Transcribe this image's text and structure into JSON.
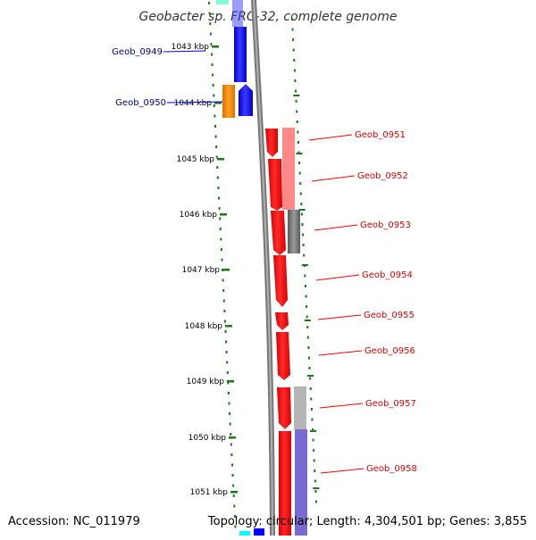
{
  "title": "Geobacter sp. FRC-32, complete genome",
  "footer": {
    "accession": "Accession: NC_011979",
    "topology": "Topology: circular; Length: 4,304,501 bp; Genes: 3,855"
  },
  "ticks": [
    "1043 kbp",
    "1044 kbp",
    "1045 kbp",
    "1046 kbp",
    "1047 kbp",
    "1048 kbp",
    "1049 kbp",
    "1050 kbp",
    "1051 kbp"
  ],
  "genes": [
    {
      "name": "Geob_0949",
      "side": "left",
      "color": "#00008B"
    },
    {
      "name": "Geob_0950",
      "side": "left",
      "color": "#00008B"
    },
    {
      "name": "Geob_0951",
      "side": "right",
      "color": "#DD0000"
    },
    {
      "name": "Geob_0952",
      "side": "right",
      "color": "#DD0000"
    },
    {
      "name": "Geob_0953",
      "side": "right",
      "color": "#DD0000"
    },
    {
      "name": "Geob_0954",
      "side": "right",
      "color": "#DD0000"
    },
    {
      "name": "Geob_0955",
      "side": "right",
      "color": "#DD0000"
    },
    {
      "name": "Geob_0956",
      "side": "right",
      "color": "#DD0000"
    },
    {
      "name": "Geob_0957",
      "side": "right",
      "color": "#DD0000"
    },
    {
      "name": "Geob_0958",
      "side": "right",
      "color": "#DD0000"
    }
  ],
  "colors": {
    "tick": "#1a7a1a",
    "forward_strand": "#0000ff",
    "reverse_strand": "#ff0000",
    "orange": "#ff8c00",
    "backbone": "#888888"
  }
}
